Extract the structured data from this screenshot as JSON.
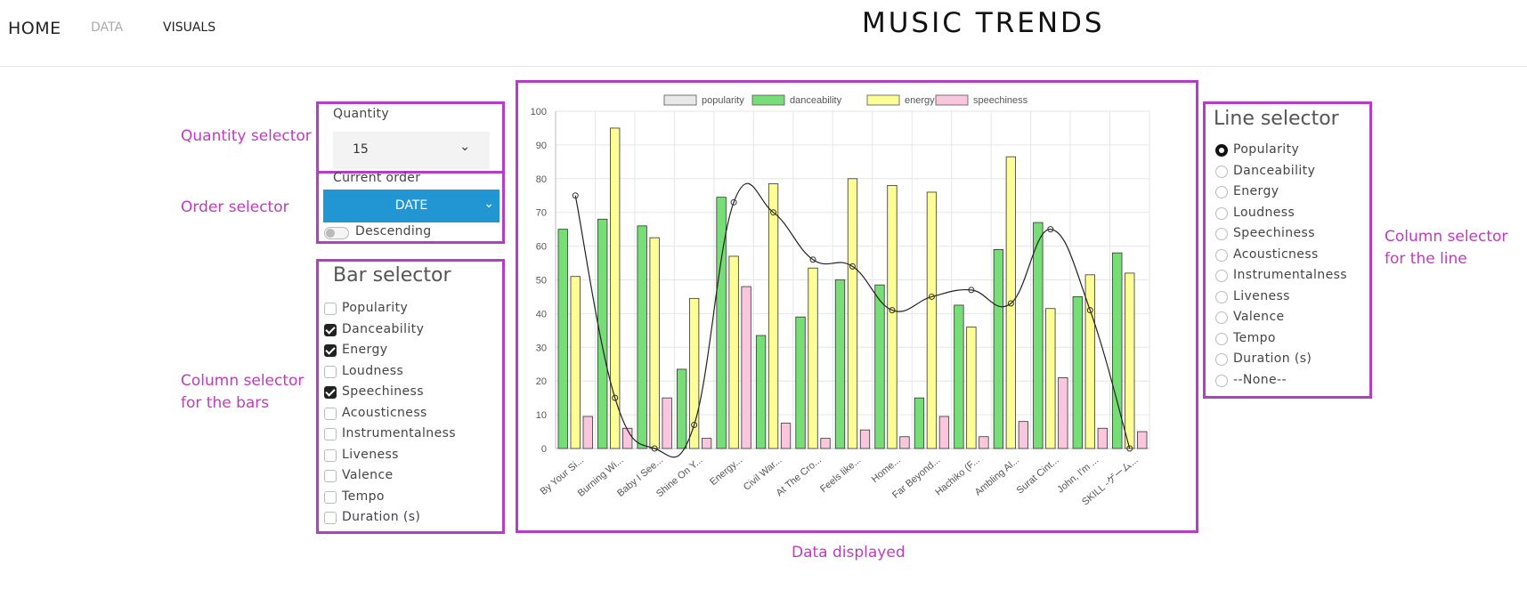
{
  "nav": {
    "home": "HOME",
    "data": "DATA",
    "visuals": "VISUALS",
    "title": "MUSIC TRENDS"
  },
  "annotations": {
    "quantity": "Quantity selector",
    "order": "Order selector",
    "bars_line1": "Column selector",
    "bars_line2": "for the bars",
    "data": "Data displayed",
    "line_line1": "Column selector",
    "line_line2": "for the line"
  },
  "quantity": {
    "label": "Quantity",
    "value": "15"
  },
  "order": {
    "label": "Current order",
    "value": "DATE",
    "descending_label": "Descending"
  },
  "bar_selector": {
    "title": "Bar selector",
    "items": [
      {
        "label": "Popularity",
        "checked": false
      },
      {
        "label": "Danceability",
        "checked": true
      },
      {
        "label": "Energy",
        "checked": true
      },
      {
        "label": "Loudness",
        "checked": false
      },
      {
        "label": "Speechiness",
        "checked": true
      },
      {
        "label": "Acousticness",
        "checked": false
      },
      {
        "label": "Instrumentalness",
        "checked": false
      },
      {
        "label": "Liveness",
        "checked": false
      },
      {
        "label": "Valence",
        "checked": false
      },
      {
        "label": "Tempo",
        "checked": false
      },
      {
        "label": "Duration (s)",
        "checked": false
      }
    ]
  },
  "line_selector": {
    "title": "Line selector",
    "selected": 0,
    "items": [
      "Popularity",
      "Danceability",
      "Energy",
      "Loudness",
      "Speechiness",
      "Acousticness",
      "Instrumentalness",
      "Liveness",
      "Valence",
      "Tempo",
      "Duration (s)",
      "--None--"
    ]
  },
  "colors": {
    "accent": "#b53bc9",
    "annotation": "#c03ac0",
    "order_select": "#2196d3",
    "danceability": "#77dd77",
    "energy": "#fdfd96",
    "speechiness": "#f9c6dd",
    "popularity": "#e8e8e8"
  },
  "chart_data": {
    "type": "bar",
    "categories": [
      "By Your Si...",
      "Burning Wi...",
      "Baby I See...",
      "Shine On Y...",
      "Energy...",
      "Civil War...",
      "At The Cro...",
      "Feels like...",
      "Home...",
      "Far Beyond...",
      "Hachiko (F...",
      "Ambling Al...",
      "Surat Cint...",
      "John, I'm ...",
      "SKILL -ゲーム..."
    ],
    "ylim": [
      0,
      100
    ],
    "yticks": [
      0,
      10,
      20,
      30,
      40,
      50,
      60,
      70,
      80,
      90,
      100
    ],
    "legend": [
      "popularity",
      "danceability",
      "energy",
      "speechiness"
    ],
    "legend_position": "top",
    "grid": true,
    "series": [
      {
        "name": "danceability",
        "values": [
          65,
          68,
          66,
          23.5,
          74.5,
          33.5,
          39,
          50,
          48.5,
          15,
          42.5,
          59,
          67,
          45,
          58
        ]
      },
      {
        "name": "energy",
        "values": [
          51,
          95,
          62.5,
          44.5,
          57,
          78.5,
          53.5,
          80,
          78,
          76,
          36,
          86.5,
          41.5,
          51.5,
          52
        ]
      },
      {
        "name": "speechiness",
        "values": [
          9.5,
          6,
          15,
          3,
          48,
          7.5,
          3,
          5.5,
          3.5,
          9.5,
          3.5,
          8,
          21,
          6,
          5
        ]
      },
      {
        "name": "popularity",
        "values": [
          75,
          15,
          0,
          7,
          73,
          70,
          56,
          54,
          41,
          45,
          47,
          43,
          65,
          41,
          0
        ]
      }
    ]
  }
}
